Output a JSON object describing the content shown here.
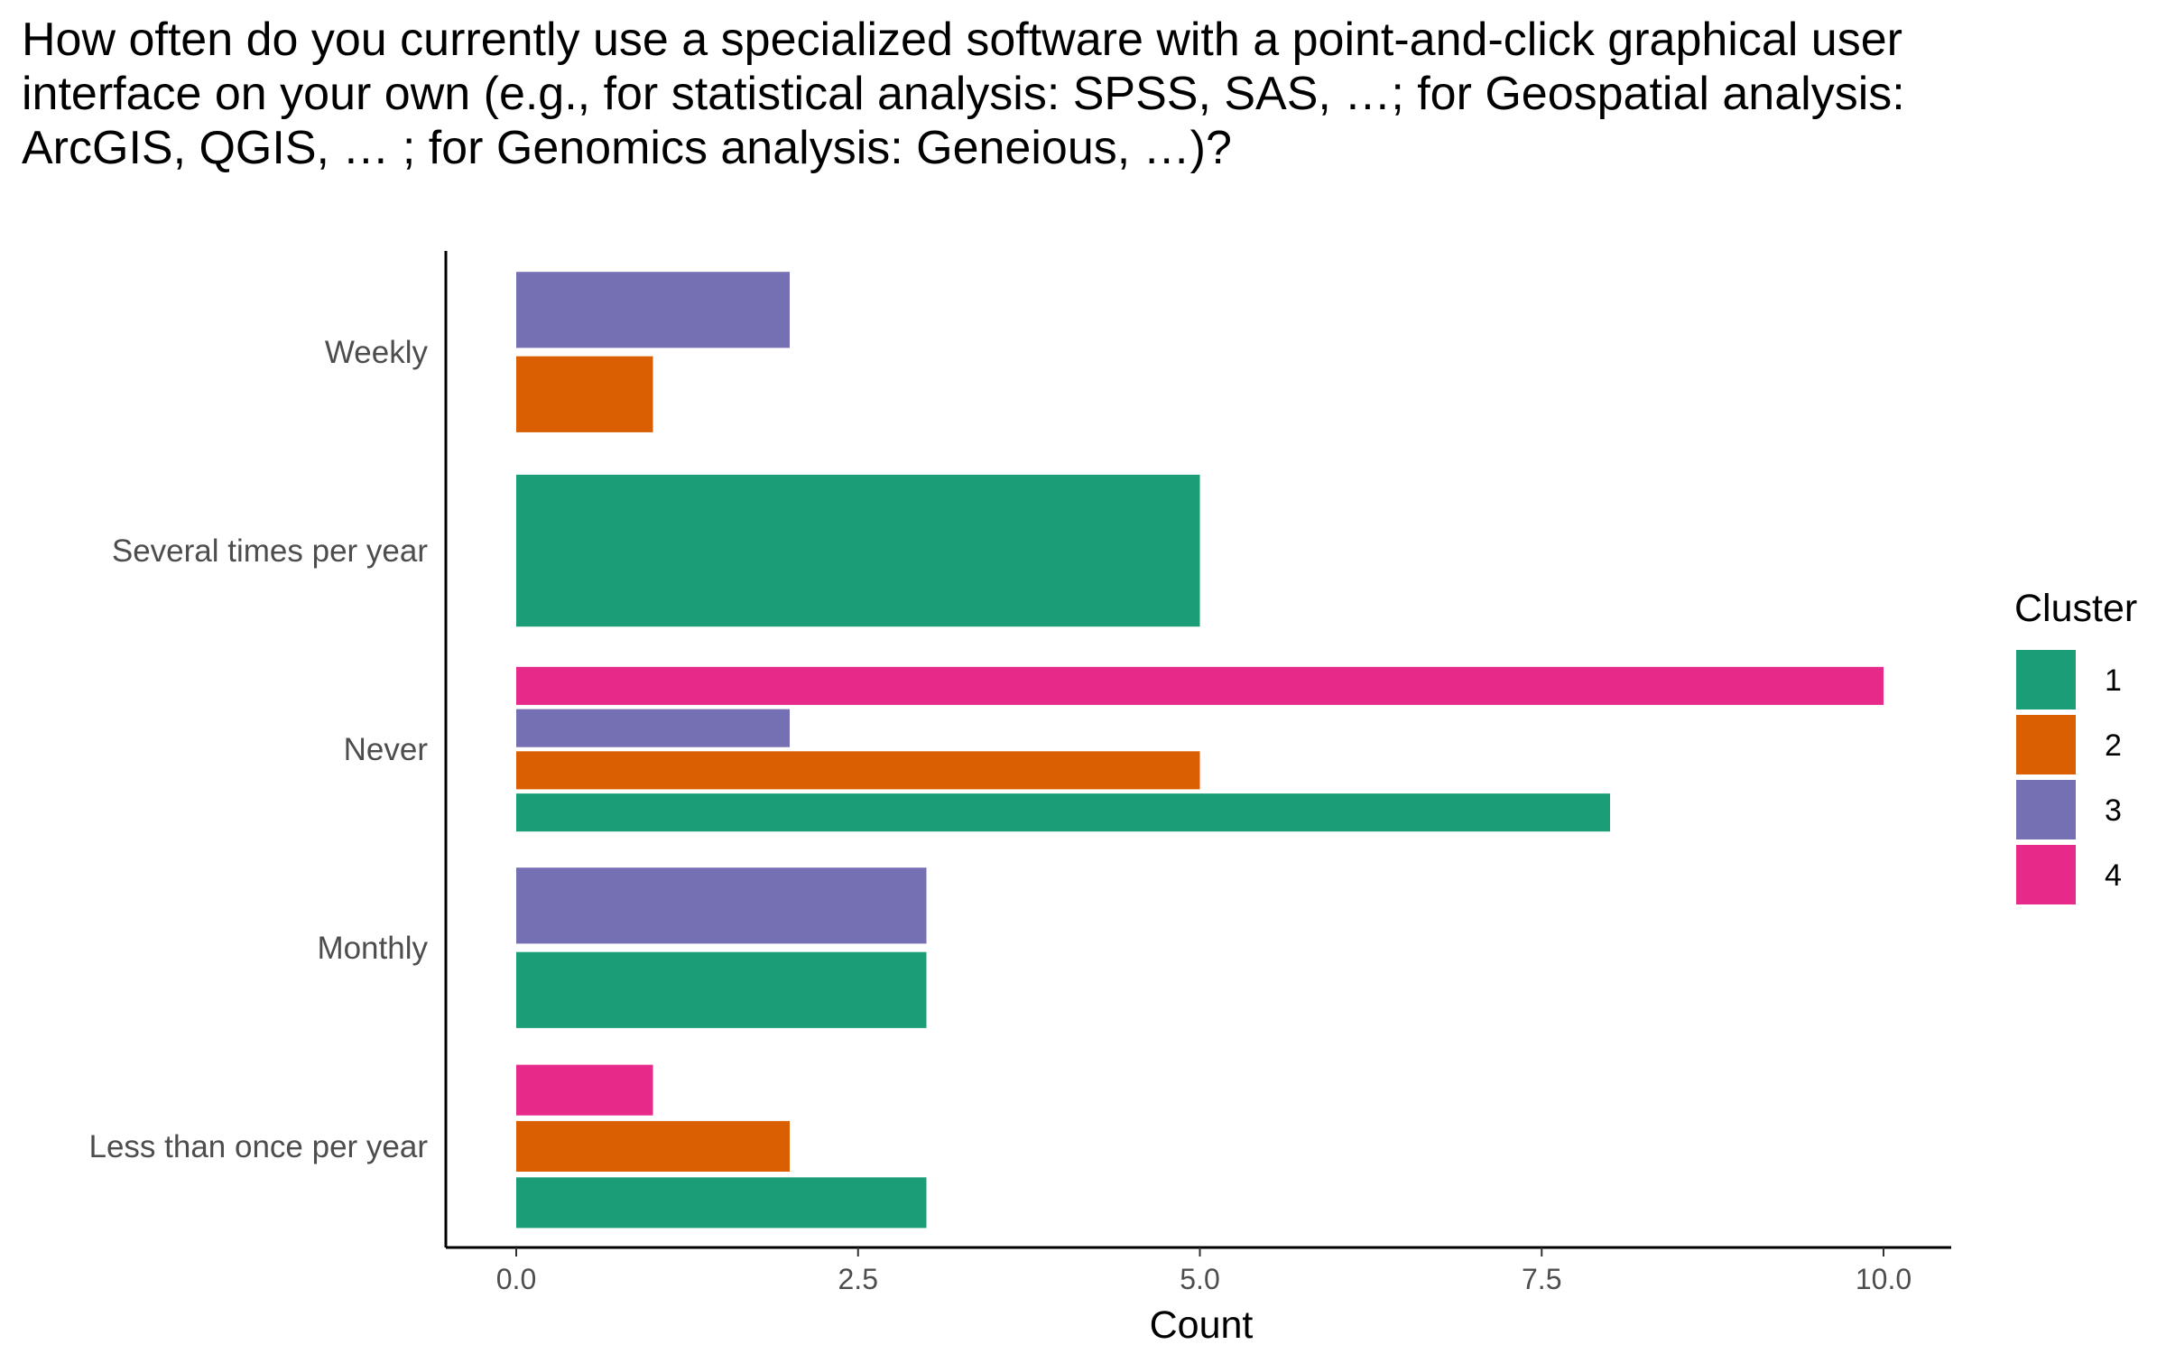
{
  "chart_data": {
    "type": "bar",
    "orientation": "horizontal",
    "title": "How often do you currently use a specialized software with a point-and-click graphical user interface on your own (e.g., for statistical analysis: SPSS, SAS, …; for Geospatial analysis: ArcGIS, QGIS, … ; for Genomics analysis: Geneious, …)?",
    "xlabel": "Count",
    "ylabel": "",
    "xlim": [
      0,
      10.5
    ],
    "xticks": [
      "0.0",
      "2.5",
      "5.0",
      "7.5",
      "10.0"
    ],
    "xtick_values": [
      0,
      2.5,
      5,
      7.5,
      10
    ],
    "categories": [
      "Weekly",
      "Several times per year",
      "Never",
      "Monthly",
      "Less than once per year"
    ],
    "legend_title": "Cluster",
    "legend_position": "right",
    "grid": false,
    "series": [
      {
        "name": "1",
        "color": "#1b9e77",
        "values": [
          null,
          5,
          8,
          3,
          3
        ]
      },
      {
        "name": "2",
        "color": "#d95f02",
        "values": [
          1,
          null,
          5,
          null,
          2
        ]
      },
      {
        "name": "3",
        "color": "#7570b3",
        "values": [
          2,
          null,
          2,
          3,
          null
        ]
      },
      {
        "name": "4",
        "color": "#e7298a",
        "values": [
          null,
          null,
          10,
          null,
          1
        ]
      }
    ]
  }
}
